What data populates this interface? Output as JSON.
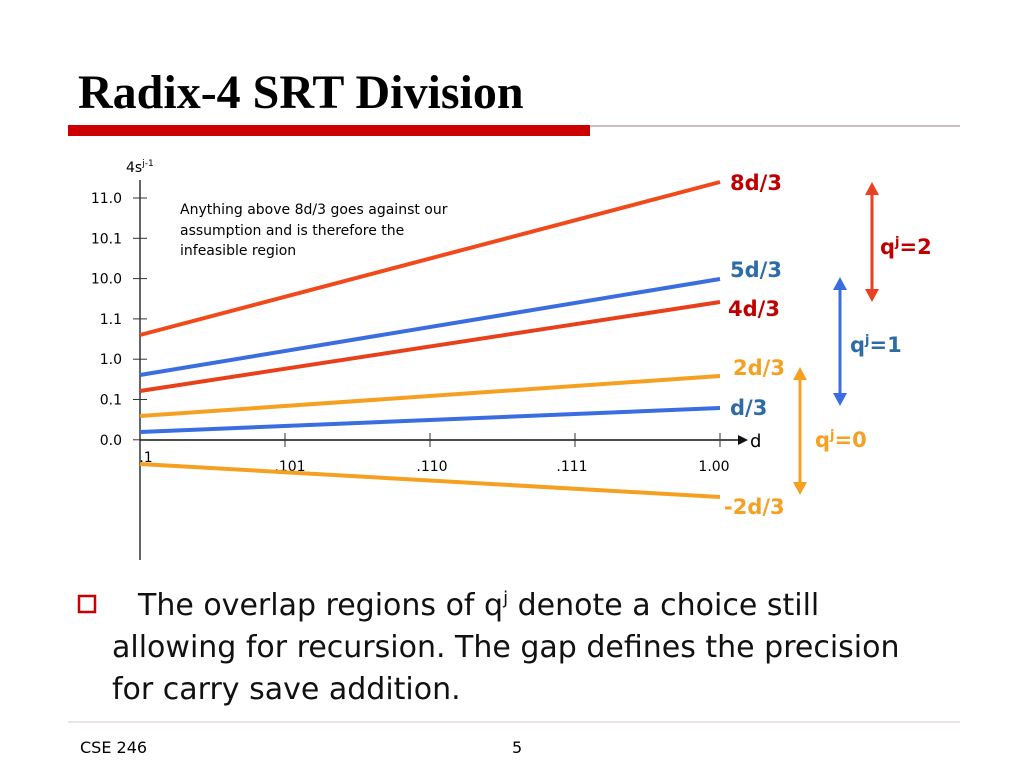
{
  "title": "Radix-4 SRT Division",
  "diagram": {
    "y_axis_label": "4s",
    "y_axis_sup": "j-1",
    "y_ticks": [
      "11.0",
      "10.1",
      "10.0",
      "1.1",
      "1.0",
      "0.1",
      "0.0"
    ],
    "x_axis_label": "d",
    "x_ticks": [
      ".1",
      ".101",
      ".110",
      ".111",
      "1.00"
    ],
    "annotation": [
      "Anything above 8d/3 goes against our",
      "assumption and is therefore the",
      "infeasible region"
    ],
    "lines": [
      "8d/3",
      "5d/3",
      "4d/3",
      "2d/3",
      "d/3",
      "-2d/3"
    ],
    "regions": [
      {
        "q": "q",
        "sup": "j",
        "rest": "=2"
      },
      {
        "q": "q",
        "sup": "j",
        "rest": "=1"
      },
      {
        "q": "q",
        "sup": "j",
        "rest": "=0"
      }
    ]
  },
  "bullet": [
    "The overlap regions of q",
    "j",
    " denote a choice still allowing for recursion. The gap defines the precision for carry save addition."
  ],
  "footer": {
    "left": "CSE 246",
    "page": "5"
  }
}
